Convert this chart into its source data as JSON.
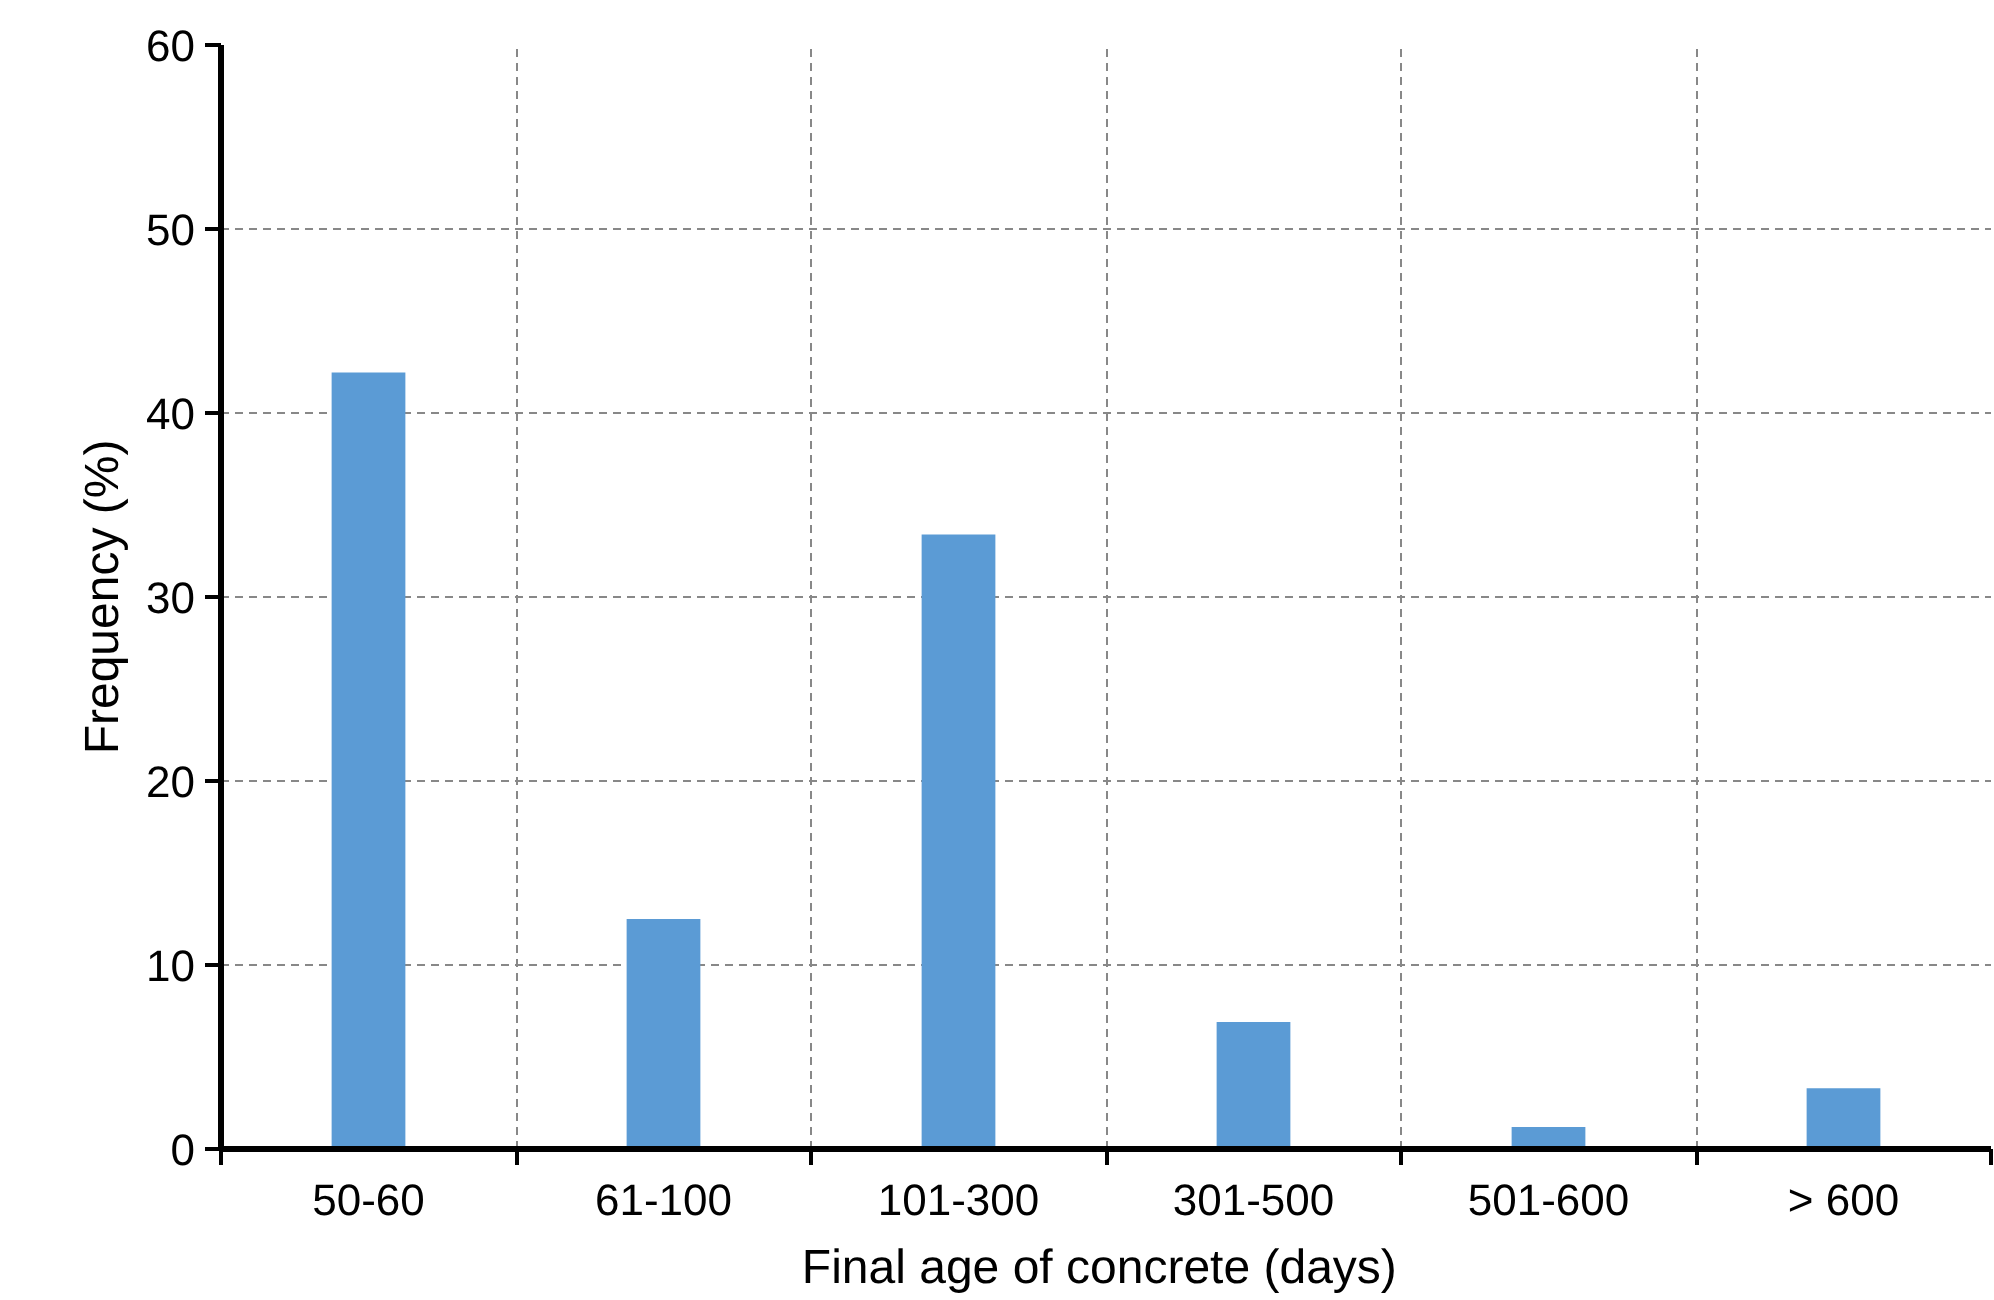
{
  "chart_data": {
    "type": "bar",
    "xlabel": "Final age of concrete  (days)",
    "ylabel": "Frequency (%)",
    "categories": [
      "50-60",
      "61-100",
      "101-300",
      "301-500",
      "501-600",
      "> 600"
    ],
    "values": [
      42.2,
      12.5,
      33.4,
      6.9,
      1.2,
      3.3
    ],
    "color": "#5b9bd5",
    "ylim": [
      0,
      60
    ],
    "yticks": [
      0,
      10,
      20,
      30,
      40,
      50,
      60
    ],
    "grid": true
  }
}
